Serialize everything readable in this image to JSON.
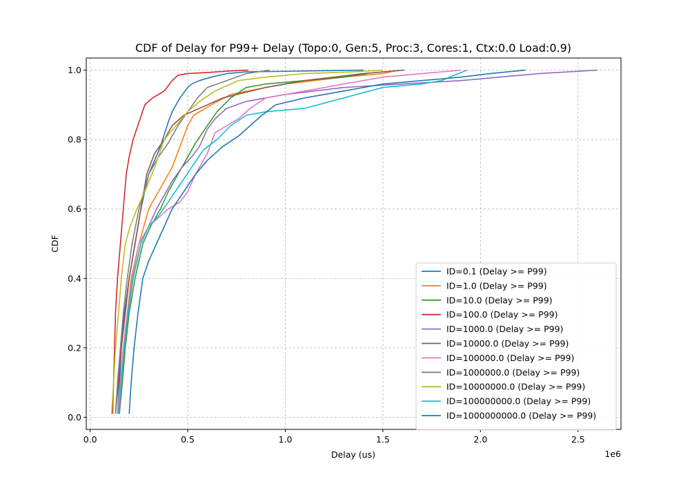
{
  "chart_data": {
    "type": "line",
    "title": "CDF of Delay for P99+ Delay (Topo:0, Gen:5, Proc:3, Cores:1, Ctx:0.0 Load:0.9)",
    "xlabel": "Delay (us)",
    "ylabel": "CDF",
    "x_offset_text": "1e6",
    "xlim": [
      -20000,
      2720000
    ],
    "ylim": [
      -0.035,
      1.035
    ],
    "x_ticks": [
      0,
      500000,
      1000000,
      1500000,
      2000000,
      2500000
    ],
    "x_tick_labels": [
      "0.0",
      "0.5",
      "1.0",
      "1.5",
      "2.0",
      "2.5"
    ],
    "y_ticks": [
      0.0,
      0.2,
      0.4,
      0.6,
      0.8,
      1.0
    ],
    "y_tick_labels": [
      "0.0",
      "0.2",
      "0.4",
      "0.6",
      "0.8",
      "1.0"
    ],
    "grid": true,
    "legend_position": "lower-right",
    "series": [
      {
        "name": "ID=0.1 (Delay >= P99)",
        "color": "#1f77b4",
        "x": [
          140000,
          150000,
          160000,
          175000,
          200000,
          230000,
          260000,
          300000,
          360000,
          400000,
          420000,
          460000,
          500000,
          520000,
          560000,
          620000,
          700000,
          800000,
          1400000
        ],
        "y": [
          0.01,
          0.1,
          0.2,
          0.3,
          0.4,
          0.5,
          0.6,
          0.7,
          0.78,
          0.85,
          0.88,
          0.92,
          0.95,
          0.96,
          0.97,
          0.98,
          0.99,
          0.995,
          1.0
        ]
      },
      {
        "name": "ID=1.0 (Delay >= P99)",
        "color": "#ff7f0e",
        "x": [
          140000,
          155000,
          170000,
          190000,
          210000,
          250000,
          300000,
          350000,
          380000,
          420000,
          460000,
          500000,
          530000,
          620000,
          720000,
          900000,
          1000000,
          1150000,
          1300000,
          1500000,
          1580000
        ],
        "y": [
          0.01,
          0.1,
          0.2,
          0.3,
          0.4,
          0.5,
          0.6,
          0.65,
          0.68,
          0.72,
          0.78,
          0.84,
          0.87,
          0.9,
          0.93,
          0.95,
          0.96,
          0.97,
          0.98,
          0.99,
          1.0
        ]
      },
      {
        "name": "ID=10.0 (Delay >= P99)",
        "color": "#2ca02c",
        "x": [
          150000,
          165000,
          180000,
          200000,
          230000,
          270000,
          310000,
          360000,
          400000,
          450000,
          500000,
          540000,
          600000,
          650000,
          720000,
          800000,
          900000,
          1100000,
          1300000,
          1420000
        ],
        "y": [
          0.01,
          0.1,
          0.2,
          0.3,
          0.4,
          0.5,
          0.55,
          0.6,
          0.65,
          0.7,
          0.75,
          0.79,
          0.84,
          0.88,
          0.92,
          0.95,
          0.96,
          0.97,
          0.98,
          0.99
        ]
      },
      {
        "name": "ID=100.0 (Delay >= P99)",
        "color": "#d62728",
        "x": [
          115000,
          120000,
          125000,
          130000,
          140000,
          155000,
          170000,
          185000,
          200000,
          220000,
          250000,
          280000,
          320000,
          380000,
          420000,
          450000,
          500000,
          600000,
          700000,
          810000
        ],
        "y": [
          0.01,
          0.1,
          0.2,
          0.3,
          0.4,
          0.5,
          0.6,
          0.7,
          0.75,
          0.8,
          0.85,
          0.9,
          0.92,
          0.94,
          0.97,
          0.985,
          0.99,
          0.993,
          0.997,
          1.0
        ]
      },
      {
        "name": "ID=1000.0 (Delay >= P99)",
        "color": "#9467bd",
        "x": [
          150000,
          160000,
          175000,
          195000,
          220000,
          260000,
          300000,
          340000,
          380000,
          420000,
          470000,
          520000,
          560000,
          600000,
          640000,
          700000,
          800000,
          1000000,
          1300000,
          1600000,
          1900000,
          2100000,
          2300000,
          2600000
        ],
        "y": [
          0.01,
          0.1,
          0.2,
          0.3,
          0.4,
          0.5,
          0.55,
          0.6,
          0.64,
          0.68,
          0.72,
          0.75,
          0.78,
          0.83,
          0.86,
          0.89,
          0.91,
          0.93,
          0.95,
          0.96,
          0.97,
          0.98,
          0.99,
          1.0
        ]
      },
      {
        "name": "ID=10000.0 (Delay >= P99)",
        "color": "#8c564b",
        "x": [
          130000,
          145000,
          160000,
          180000,
          200000,
          230000,
          260000,
          290000,
          330000,
          380000,
          420000,
          480000,
          560000,
          680000,
          900000,
          1100000,
          1400000,
          1610000
        ],
        "y": [
          0.01,
          0.1,
          0.2,
          0.3,
          0.4,
          0.5,
          0.6,
          0.7,
          0.76,
          0.8,
          0.84,
          0.87,
          0.89,
          0.92,
          0.95,
          0.97,
          0.99,
          1.0
        ]
      },
      {
        "name": "ID=100000.0 (Delay >= P99)",
        "color": "#e377c2",
        "x": [
          140000,
          155000,
          170000,
          190000,
          215000,
          250000,
          300000,
          360000,
          400000,
          460000,
          500000,
          540000,
          600000,
          640000,
          700000,
          760000,
          820000,
          900000,
          1100000,
          1300000,
          1500000,
          1700000,
          1900000
        ],
        "y": [
          0.01,
          0.1,
          0.2,
          0.3,
          0.4,
          0.5,
          0.55,
          0.58,
          0.6,
          0.62,
          0.65,
          0.7,
          0.76,
          0.82,
          0.84,
          0.86,
          0.89,
          0.92,
          0.94,
          0.96,
          0.98,
          0.99,
          1.0
        ]
      },
      {
        "name": "ID=1000000.0 (Delay >= P99)",
        "color": "#7f7f7f",
        "x": [
          130000,
          140000,
          155000,
          170000,
          190000,
          215000,
          250000,
          300000,
          350000,
          400000,
          450000,
          500000,
          550000,
          600000,
          700000,
          800000,
          920000
        ],
        "y": [
          0.01,
          0.1,
          0.2,
          0.3,
          0.4,
          0.5,
          0.6,
          0.7,
          0.75,
          0.79,
          0.84,
          0.88,
          0.92,
          0.95,
          0.97,
          0.99,
          1.0
        ]
      },
      {
        "name": "ID=10000000.0 (Delay >= P99)",
        "color": "#bcbd22",
        "x": [
          110000,
          120000,
          130000,
          145000,
          160000,
          180000,
          205000,
          240000,
          280000,
          330000,
          380000,
          440000,
          500000,
          560000,
          640000,
          760000,
          900000,
          1100000,
          1350000,
          1500000
        ],
        "y": [
          0.01,
          0.1,
          0.2,
          0.3,
          0.4,
          0.5,
          0.55,
          0.6,
          0.65,
          0.72,
          0.8,
          0.84,
          0.88,
          0.91,
          0.94,
          0.97,
          0.98,
          0.99,
          0.995,
          1.0
        ]
      },
      {
        "name": "ID=100000000.0 (Delay >= P99)",
        "color": "#17becf",
        "x": [
          145000,
          160000,
          175000,
          195000,
          220000,
          260000,
          300000,
          350000,
          400000,
          460000,
          520000,
          580000,
          650000,
          720000,
          800000,
          900000,
          1100000,
          1300000,
          1500000,
          1700000,
          1800000,
          1930000
        ],
        "y": [
          0.01,
          0.1,
          0.2,
          0.3,
          0.4,
          0.5,
          0.55,
          0.58,
          0.62,
          0.67,
          0.72,
          0.77,
          0.8,
          0.84,
          0.87,
          0.88,
          0.89,
          0.92,
          0.95,
          0.96,
          0.97,
          1.0
        ]
      },
      {
        "name": "ID=1000000000.0 (Delay >= P99)",
        "color": "#1f77b4",
        "x": [
          200000,
          210000,
          225000,
          245000,
          270000,
          300000,
          340000,
          380000,
          420000,
          480000,
          540000,
          600000,
          680000,
          760000,
          820000,
          880000,
          950000,
          1100000,
          1300000,
          1500000,
          1700000,
          1900000,
          2050000,
          2230000
        ],
        "y": [
          0.01,
          0.1,
          0.2,
          0.3,
          0.4,
          0.45,
          0.5,
          0.55,
          0.6,
          0.65,
          0.7,
          0.74,
          0.78,
          0.81,
          0.84,
          0.87,
          0.9,
          0.92,
          0.94,
          0.96,
          0.97,
          0.98,
          0.99,
          1.0
        ]
      }
    ]
  }
}
